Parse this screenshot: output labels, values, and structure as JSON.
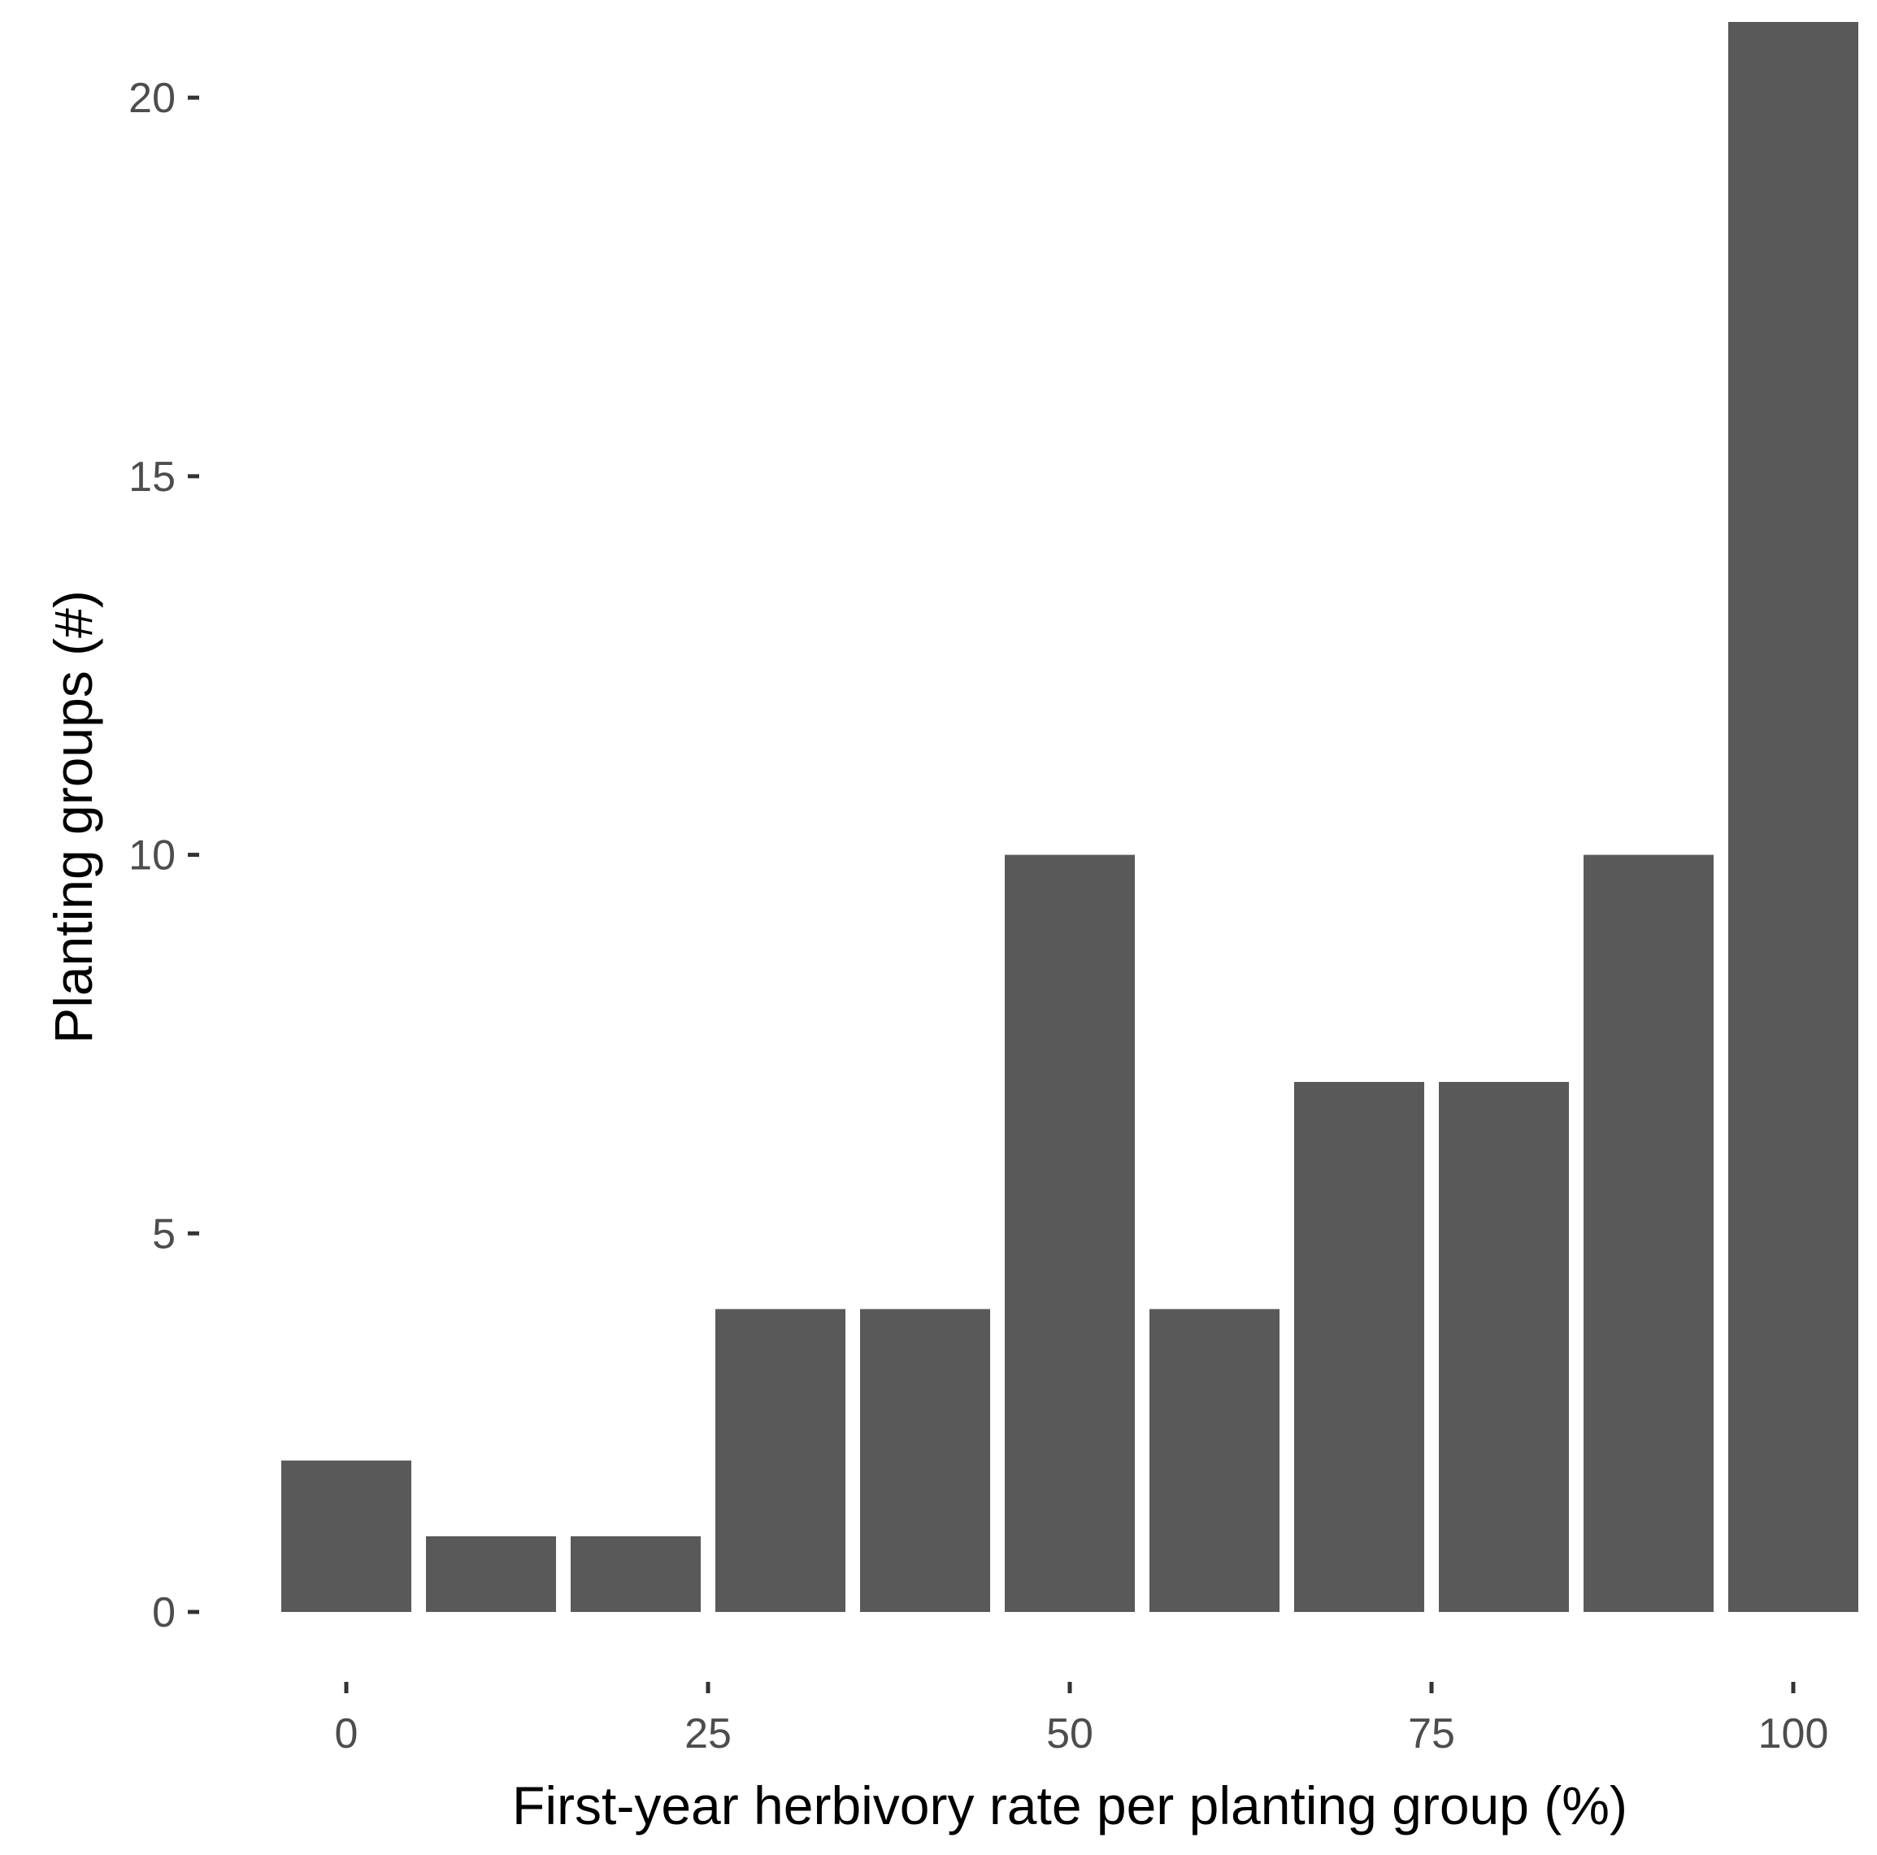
{
  "chart_data": {
    "type": "bar",
    "title": "",
    "xlabel": "First-year herbivory rate per planting group (%)",
    "ylabel": "Planting groups (#)",
    "bin_width": 10,
    "bins": [
      {
        "center": 0,
        "value": 2
      },
      {
        "center": 10,
        "value": 1
      },
      {
        "center": 20,
        "value": 1
      },
      {
        "center": 30,
        "value": 4
      },
      {
        "center": 40,
        "value": 4
      },
      {
        "center": 50,
        "value": 10
      },
      {
        "center": 60,
        "value": 4
      },
      {
        "center": 70,
        "value": 7
      },
      {
        "center": 80,
        "value": 7
      },
      {
        "center": 90,
        "value": 10
      },
      {
        "center": 100,
        "value": 21
      }
    ],
    "x_ticks": [
      "0",
      "25",
      "50",
      "75",
      "100"
    ],
    "x_tick_values": [
      0,
      25,
      50,
      75,
      100
    ],
    "y_ticks": [
      "0",
      "5",
      "10",
      "15",
      "20"
    ],
    "y_tick_values": [
      0,
      5,
      10,
      15,
      20
    ],
    "xlim": [
      -5,
      105
    ],
    "ylim": [
      0,
      21
    ],
    "grid": false,
    "legend": "none",
    "bar_color": "#595959"
  }
}
